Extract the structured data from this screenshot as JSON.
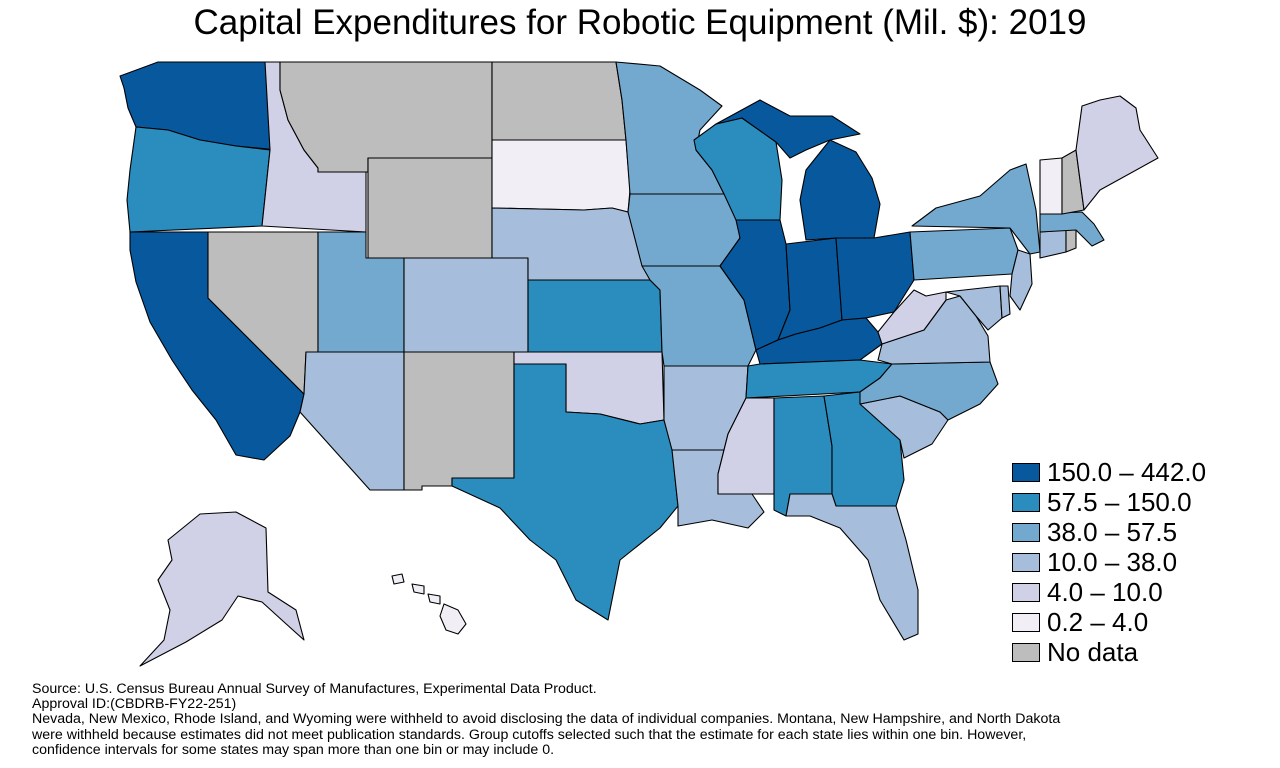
{
  "title": "Capital Expenditures for Robotic Equipment (Mil. $): 2019",
  "colors": {
    "c1": "#08589e",
    "c2": "#2b8cbe",
    "c3": "#74a9cf",
    "c4": "#a6bddb",
    "c5": "#d0d1e6",
    "c6": "#f1eef6",
    "nodata": "#bdbdbd"
  },
  "legend": [
    {
      "label": "150.0 – 442.0",
      "color_key": "c1"
    },
    {
      "label": "57.5 – 150.0",
      "color_key": "c2"
    },
    {
      "label": "38.0 – 57.5",
      "color_key": "c3"
    },
    {
      "label": "10.0 – 38.0",
      "color_key": "c4"
    },
    {
      "label": "4.0 – 10.0",
      "color_key": "c5"
    },
    {
      "label": "0.2 – 4.0",
      "color_key": "c6"
    },
    {
      "label": "No data",
      "color_key": "nodata"
    }
  ],
  "states": {
    "WA": "c1",
    "OR": "c2",
    "CA": "c1",
    "ID": "c5",
    "NV": "nodata",
    "MT": "nodata",
    "WY": "nodata",
    "UT": "c3",
    "AZ": "c4",
    "CO": "c4",
    "NM": "nodata",
    "ND": "nodata",
    "SD": "c6",
    "NE": "c4",
    "KS": "c2",
    "OK": "c5",
    "TX": "c2",
    "MN": "c3",
    "IA": "c3",
    "MO": "c3",
    "AR": "c4",
    "LA": "c4",
    "WI": "c2",
    "IL": "c1",
    "MI": "c1",
    "IN": "c1",
    "OH": "c1",
    "KY": "c1",
    "TN": "c2",
    "MS": "c5",
    "AL": "c2",
    "GA": "c2",
    "FL": "c4",
    "SC": "c4",
    "NC": "c3",
    "VA": "c4",
    "WV": "c5",
    "PA": "c3",
    "NY": "c3",
    "NJ": "c4",
    "DE": "c4",
    "MD": "c4",
    "CT": "c4",
    "RI": "nodata",
    "MA": "c3",
    "VT": "c6",
    "NH": "nodata",
    "ME": "c5",
    "AK": "c5",
    "HI": "c6"
  },
  "notes": [
    "Source: U.S. Census Bureau Annual Survey of Manufactures, Experimental Data Product.",
    "Approval ID:(CBDRB-FY22-251)",
    "Nevada, New Mexico, Rhode Island, and Wyoming were withheld to avoid disclosing the data of individual companies. Montana, New Hampshire, and North Dakota",
    "were withheld because estimates did not meet publication standards. Group cutoffs selected such that the estimate for each state lies within one bin. However,",
    "confidence intervals for some states may span more than one bin or may include 0."
  ]
}
